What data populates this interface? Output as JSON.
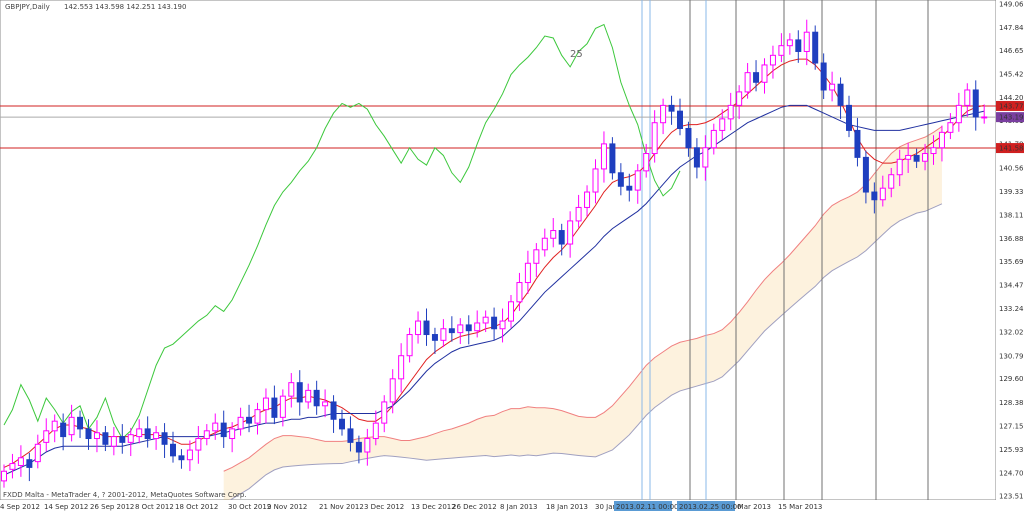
{
  "header": {
    "symbol_tf": "GBPJPY,Daily",
    "ohlc": "142.553 143.598 142.251 143.190"
  },
  "footer": {
    "copyright": "FXDD Malta - MetaTrader 4, ? 2001-2012, MetaQuotes Software Corp."
  },
  "annotation": "25",
  "colors": {
    "background": "#ffffff",
    "up_candle": "#ff00ff",
    "down_candle": "#1f3fbf",
    "tenkan": "#e02020",
    "kijun": "#2030a0",
    "chikou": "#3cc83c",
    "span_a": "#f08080",
    "span_b": "#a0a0c0",
    "cloud_fill": "#f5b94a",
    "hline": "#d02020",
    "price_bg": "#7a3fa0",
    "vline_time": "#8ab8e8",
    "vline": "#707070"
  },
  "chart_data": {
    "type": "candlestick",
    "title": "GBPJPY,Daily",
    "ylim": [
      123.515,
      149.065
    ],
    "y_ticks": [
      149.065,
      147.84,
      146.65,
      145.425,
      144.2,
      143.01,
      141.785,
      140.56,
      139.335,
      138.11,
      136.885,
      135.695,
      134.47,
      133.245,
      132.02,
      130.795,
      129.605,
      128.38,
      127.155,
      125.93,
      124.705,
      123.515
    ],
    "x_ticks": [
      "4 Sep 2012",
      "14 Sep 2012",
      "26 Sep 2012",
      "8 Oct 2012",
      "18 Oct 2012",
      "30 Oct 2012",
      "9 Nov 2012",
      "21 Nov 2012",
      "3 Dec 2012",
      "13 Dec 2012",
      "26 Dec 2012",
      "8 Jan 2013",
      "18 Jan 2013",
      "30 Jan 2013",
      "5 Mar 2013",
      "15 Mar 2013"
    ],
    "x_tick_highlight": [
      "2013.02.11 00:00",
      "2013.02.25 00:00"
    ],
    "price_labels": [
      {
        "value": 143.77,
        "text": "143.770",
        "color": "#d02020"
      },
      {
        "value": 143.19,
        "text": "143.190",
        "color": "#7a3fa0"
      },
      {
        "value": 141.584,
        "text": "141.584",
        "color": "#d02020"
      }
    ],
    "hlines": [
      143.77,
      141.584
    ],
    "current_price": 143.19,
    "close": [
      124.8,
      125.2,
      125.5,
      125.0,
      126.2,
      126.9,
      127.4,
      126.6,
      127.6,
      127.0,
      126.5,
      126.8,
      126.2,
      126.6,
      126.3,
      126.7,
      127.0,
      126.5,
      126.8,
      126.2,
      125.6,
      125.4,
      125.9,
      126.5,
      126.9,
      127.3,
      126.6,
      127.0,
      127.6,
      127.3,
      128.0,
      128.6,
      127.6,
      128.7,
      129.4,
      128.4,
      129.0,
      128.2,
      128.4,
      127.5,
      127.0,
      126.3,
      125.8,
      126.5,
      127.3,
      128.4,
      129.6,
      130.8,
      131.9,
      132.6,
      131.9,
      131.6,
      132.2,
      132.0,
      132.4,
      132.1,
      132.5,
      132.8,
      132.2,
      132.6,
      133.6,
      134.6,
      135.6,
      136.3,
      136.9,
      137.3,
      136.6,
      137.8,
      138.5,
      139.3,
      140.5,
      141.8,
      140.3,
      139.6,
      139.4,
      140.4,
      141.3,
      142.9,
      143.8,
      143.5,
      142.6,
      141.6,
      140.6,
      141.6,
      142.5,
      143.1,
      143.8,
      144.5,
      145.5,
      145.0,
      145.9,
      146.4,
      146.9,
      147.2,
      146.6,
      147.6,
      146.0,
      144.6,
      144.9,
      143.8,
      142.5,
      141.1,
      139.3,
      138.9,
      139.5,
      140.2,
      141.0,
      141.2,
      140.9,
      141.3,
      141.6,
      142.4,
      142.9,
      143.8,
      144.6,
      143.2,
      143.2
    ],
    "open_offset": [
      -0.5,
      -0.3,
      -0.4,
      0.4,
      -0.9,
      -0.6,
      -0.5,
      0.7,
      -0.9,
      0.6,
      0.5,
      -0.3,
      0.6,
      -0.5,
      0.3,
      -0.4,
      -0.4,
      0.5,
      -0.3,
      0.6,
      0.6,
      0.2,
      -0.5,
      -0.6,
      -0.4,
      -0.4,
      0.7,
      -0.5,
      -0.6,
      0.3,
      -0.7,
      -0.6,
      1.0,
      -1.1,
      -0.7,
      1.0,
      -0.6,
      0.8,
      -0.2,
      0.9,
      0.5,
      0.7,
      0.5,
      -0.7,
      -0.8,
      -1.1,
      -1.2,
      -1.2,
      -1.1,
      -0.7,
      0.7,
      0.3,
      -0.6,
      0.2,
      -0.4,
      0.3,
      -0.4,
      -0.3,
      0.6,
      -0.4,
      -1.0,
      -1.0,
      -1.0,
      -0.7,
      -0.6,
      -0.4,
      0.7,
      -1.2,
      -0.7,
      -0.8,
      -1.2,
      -1.3,
      1.5,
      0.7,
      0.2,
      -1.0,
      -0.9,
      -1.6,
      -0.9,
      0.3,
      0.9,
      1.0,
      1.0,
      -1.0,
      -0.9,
      -0.6,
      -0.7,
      -0.7,
      -1.0,
      0.5,
      -0.9,
      -0.5,
      -0.5,
      -0.3,
      0.6,
      -1.0,
      1.6,
      1.4,
      -0.3,
      1.1,
      1.3,
      1.4,
      1.8,
      0.4,
      -0.6,
      -0.7,
      -0.8,
      -0.2,
      0.3,
      -0.4,
      -0.3,
      -0.8,
      -0.5,
      -0.9,
      -0.8,
      1.4,
      0.0
    ],
    "tenkan": [
      125.0,
      125.2,
      125.5,
      125.8,
      126.2,
      126.6,
      127.0,
      127.2,
      127.2,
      127.1,
      127.0,
      126.8,
      126.6,
      126.6,
      126.6,
      126.6,
      126.7,
      126.7,
      126.7,
      126.6,
      126.4,
      126.2,
      126.2,
      126.4,
      126.6,
      126.8,
      127.0,
      127.1,
      127.3,
      127.5,
      127.8,
      128.0,
      128.1,
      128.4,
      128.6,
      128.6,
      128.7,
      128.6,
      128.5,
      128.3,
      128.1,
      127.8,
      127.5,
      127.4,
      127.4,
      127.7,
      128.2,
      128.8,
      129.4,
      130.0,
      130.6,
      131.0,
      131.3,
      131.6,
      131.8,
      131.9,
      132.0,
      132.2,
      132.3,
      132.5,
      132.9,
      133.5,
      134.1,
      134.8,
      135.4,
      135.9,
      136.3,
      136.8,
      137.4,
      138.0,
      138.6,
      139.3,
      139.8,
      140.0,
      140.1,
      140.3,
      140.7,
      141.3,
      141.9,
      142.4,
      142.7,
      142.8,
      142.8,
      142.9,
      143.1,
      143.4,
      143.7,
      144.0,
      144.4,
      144.8,
      145.2,
      145.6,
      145.9,
      146.1,
      146.2,
      146.2,
      145.9,
      145.4,
      144.8,
      144.0,
      143.1,
      142.1,
      141.4,
      141.0,
      140.8,
      140.8,
      140.9,
      141.1,
      141.3,
      141.6,
      141.9,
      142.2,
      142.6,
      143.1,
      143.5,
      143.7,
      143.8
    ],
    "kijun": [
      124.6,
      124.8,
      125.0,
      125.2,
      125.5,
      125.8,
      126.0,
      126.1,
      126.1,
      126.1,
      126.1,
      126.1,
      126.1,
      126.1,
      126.1,
      126.2,
      126.3,
      126.4,
      126.5,
      126.6,
      126.6,
      126.6,
      126.6,
      126.6,
      126.6,
      126.7,
      126.8,
      126.9,
      127.0,
      127.1,
      127.2,
      127.3,
      127.3,
      127.4,
      127.5,
      127.5,
      127.6,
      127.6,
      127.7,
      127.8,
      127.8,
      127.8,
      127.8,
      127.8,
      127.8,
      128.0,
      128.2,
      128.6,
      129.0,
      129.5,
      130.0,
      130.4,
      130.7,
      131.0,
      131.2,
      131.3,
      131.4,
      131.5,
      131.6,
      131.8,
      132.2,
      132.6,
      133.1,
      133.6,
      134.1,
      134.5,
      134.9,
      135.3,
      135.7,
      136.1,
      136.5,
      137.0,
      137.4,
      137.7,
      138.0,
      138.3,
      138.7,
      139.2,
      139.7,
      140.2,
      140.6,
      140.9,
      141.2,
      141.4,
      141.7,
      142.0,
      142.3,
      142.6,
      142.9,
      143.1,
      143.3,
      143.5,
      143.7,
      143.8,
      143.8,
      143.8,
      143.6,
      143.4,
      143.2,
      143.0,
      142.8,
      142.7,
      142.6,
      142.5,
      142.5,
      142.5,
      142.5,
      142.6,
      142.7,
      142.8,
      142.9,
      143.0,
      143.1,
      143.2,
      143.3,
      143.4,
      143.5
    ],
    "chikou": [
      127.2,
      128.0,
      129.3,
      128.5,
      127.4,
      128.6,
      128.0,
      127.3,
      127.9,
      128.2,
      127.0,
      127.6,
      128.6,
      127.3,
      126.5,
      126.9,
      127.7,
      129.0,
      130.3,
      131.2,
      131.4,
      131.8,
      132.2,
      132.6,
      132.9,
      133.4,
      133.1,
      133.7,
      134.6,
      135.5,
      136.5,
      137.6,
      138.6,
      139.3,
      139.8,
      140.4,
      140.9,
      141.6,
      142.6,
      143.4,
      143.9,
      143.7,
      143.9,
      143.6,
      142.8,
      142.2,
      141.5,
      140.8,
      141.6,
      141.0,
      140.7,
      141.6,
      141.2,
      140.3,
      139.8,
      140.6,
      141.8,
      142.9,
      143.6,
      144.4,
      145.4,
      145.9,
      146.3,
      146.8,
      147.4,
      147.3,
      146.4,
      145.8,
      146.6,
      147.0,
      147.8,
      148.0,
      146.8,
      145.0,
      143.8,
      142.8,
      141.2,
      139.9,
      139.1,
      139.5,
      140.4
    ]
  }
}
